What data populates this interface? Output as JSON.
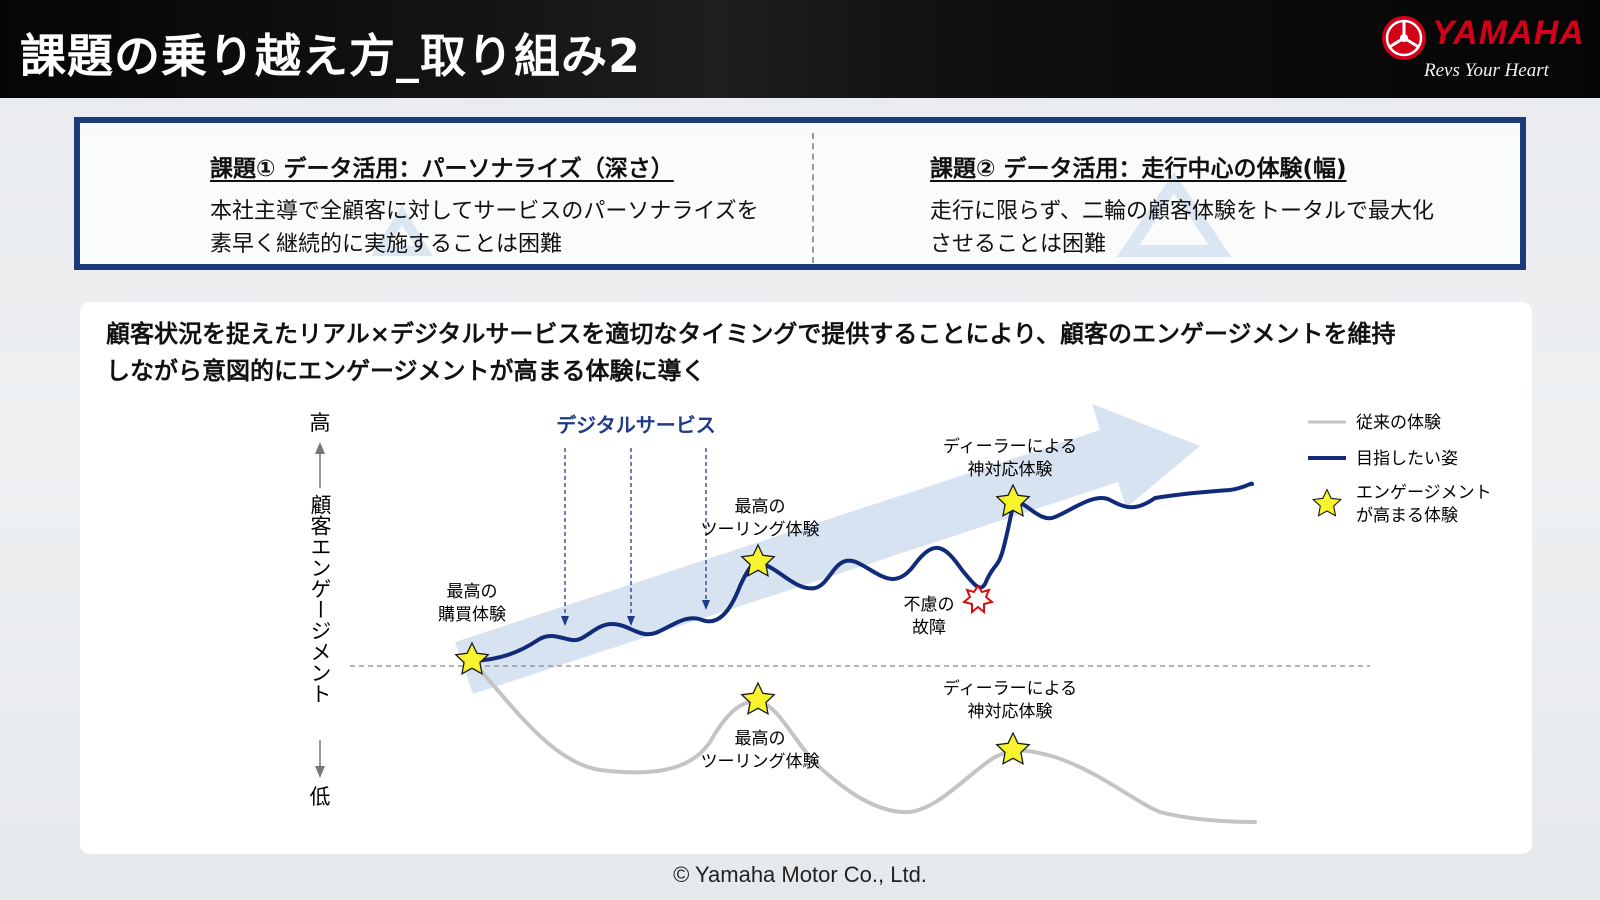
{
  "header": {
    "title": "課題の乗り越え方_取り組み2",
    "logo": {
      "brand": "YAMAHA",
      "tagline": "Revs Your Heart"
    }
  },
  "issues": [
    {
      "title": "課題① データ活用：パーソナライズ（深さ）",
      "lines": [
        "本社主導で全顧客に対してサービスのパーソナライズを",
        "素早く継続的に実施することは困難"
      ]
    },
    {
      "title": "課題② データ活用：走行中心の体験(幅)",
      "lines": [
        "走行に限らず、二輪の顧客体験をトータルで最大化",
        "させることは困難"
      ]
    }
  ],
  "main": {
    "text": [
      "顧客状況を捉えたリアル×デジタルサービスを適切なタイミングで提供することにより、顧客のエンゲージメントを維持",
      "しながら意図的にエンゲージメントが高まる体験に導く"
    ]
  },
  "diagram": {
    "y_axis": {
      "high": "高",
      "label": "顧客エンゲージメント",
      "low": "低"
    },
    "digital_service_label": "デジタルサービス",
    "annotations": {
      "purchase": [
        "最高の",
        "購買体験"
      ],
      "touring_upper": [
        "最高の",
        "ツーリング体験"
      ],
      "dealer_upper": [
        "ディーラーによる",
        "神対応体験"
      ],
      "breakdown": [
        "不慮の",
        "故障"
      ],
      "touring_lower": [
        "最高の",
        "ツーリング体験"
      ],
      "dealer_lower": [
        "ディーラーによる",
        "神対応体験"
      ]
    },
    "legend": {
      "conventional": "従来の体験",
      "target": "目指したい姿",
      "engagement": [
        "エンゲージメント",
        "が高まる体験"
      ]
    },
    "colors": {
      "target_line": "#112b7a",
      "conventional_line": "#c4c4c4",
      "arrow": "#d8e3f1",
      "star": "#f7f32c",
      "burst": "#d60f0f",
      "digital_label": "#1e3a8a"
    }
  },
  "footer": {
    "copyright": "© Yamaha Motor Co., Ltd."
  }
}
